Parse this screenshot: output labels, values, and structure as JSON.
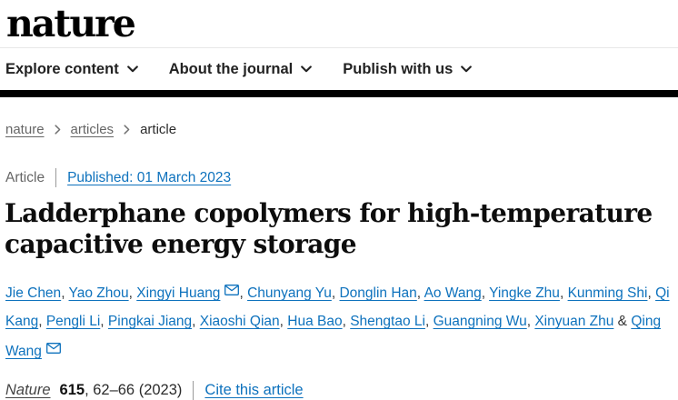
{
  "header": {
    "logo_text": "nature",
    "nav_items": [
      {
        "label": "Explore content"
      },
      {
        "label": "About the journal"
      },
      {
        "label": "Publish with us"
      }
    ]
  },
  "breadcrumb": [
    {
      "label": "nature",
      "is_link": true
    },
    {
      "label": "articles",
      "is_link": true
    },
    {
      "label": "article",
      "is_link": false
    }
  ],
  "article_meta": {
    "type_label": "Article",
    "published_link": "Published: 01 March 2023"
  },
  "title_lines": [
    "Ladderphane copolymers for high-temperature",
    "capacitive energy storage"
  ],
  "authors": [
    {
      "name": "Jie Chen",
      "has_email": false
    },
    {
      "name": "Yao Zhou",
      "has_email": false
    },
    {
      "name": "Xingyi Huang",
      "has_email": true
    },
    {
      "name": "Chunyang Yu",
      "has_email": false
    },
    {
      "name": "Donglin Han",
      "has_email": false
    },
    {
      "name": "Ao Wang",
      "has_email": false
    },
    {
      "name": "Yingke Zhu",
      "has_email": false
    },
    {
      "name": "Kunming Shi",
      "has_email": false
    },
    {
      "name": "Qi Kang",
      "has_email": false
    },
    {
      "name": "Pengli Li",
      "has_email": false
    },
    {
      "name": "Pingkai Jiang",
      "has_email": false
    },
    {
      "name": "Xiaoshi Qian",
      "has_email": false
    },
    {
      "name": "Hua Bao",
      "has_email": false
    },
    {
      "name": "Shengtao Li",
      "has_email": false
    },
    {
      "name": "Guangning Wu",
      "has_email": false
    },
    {
      "name": "Xinyuan Zhu",
      "has_email": false
    },
    {
      "name": "Qing Wang",
      "has_email": true
    }
  ],
  "citation": {
    "journal": "Nature",
    "volume": "615",
    "pages_text": ", 62–66 (2023)",
    "cite_link": "Cite this article"
  },
  "colors": {
    "link_blue": "#0e72bd",
    "nav_text": "#222222",
    "muted_gray": "#666666",
    "rule_black": "#000000"
  }
}
